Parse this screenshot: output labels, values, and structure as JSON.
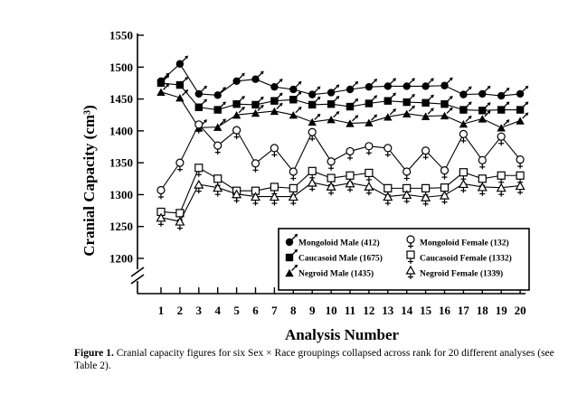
{
  "chart_data": {
    "type": "line",
    "xlabel": "Analysis Number",
    "ylabel": "Cranial Capacity (cm³)",
    "x": [
      1,
      2,
      3,
      4,
      5,
      6,
      7,
      8,
      9,
      10,
      11,
      12,
      13,
      14,
      15,
      16,
      17,
      18,
      19,
      20
    ],
    "yticks": [
      1200,
      1250,
      1300,
      1350,
      1400,
      1450,
      1500,
      1550
    ],
    "ylim": [
      1200,
      1550
    ],
    "axis_break": true,
    "series": [
      {
        "name": "Mongoloid Male (412)",
        "sex": "male",
        "values": [
          1478,
          1505,
          1458,
          1456,
          1478,
          1481,
          1469,
          1465,
          1457,
          1460,
          1465,
          1469,
          1470,
          1470,
          1470,
          1471,
          1457,
          1458,
          1455,
          1458
        ]
      },
      {
        "name": "Caucasoid Male (1675)",
        "sex": "male",
        "values": [
          1475,
          1472,
          1437,
          1433,
          1442,
          1441,
          1447,
          1449,
          1441,
          1442,
          1438,
          1443,
          1447,
          1445,
          1444,
          1442,
          1433,
          1432,
          1433,
          1433
        ]
      },
      {
        "name": "Negroid Male (1435)",
        "sex": "male",
        "values": [
          1461,
          1452,
          1405,
          1406,
          1425,
          1428,
          1431,
          1425,
          1414,
          1418,
          1412,
          1413,
          1422,
          1427,
          1423,
          1424,
          1411,
          1419,
          1405,
          1416
        ]
      },
      {
        "name": "Mongoloid Female (132)",
        "sex": "female",
        "values": [
          1307,
          1350,
          1410,
          1377,
          1401,
          1349,
          1373,
          1336,
          1398,
          1352,
          1368,
          1376,
          1373,
          1336,
          1369,
          1338,
          1395,
          1354,
          1391,
          1355
        ]
      },
      {
        "name": "Caucasoid Female (1332)",
        "sex": "female",
        "values": [
          1273,
          1271,
          1342,
          1325,
          1306,
          1306,
          1312,
          1310,
          1337,
          1326,
          1330,
          1334,
          1310,
          1310,
          1310,
          1311,
          1335,
          1325,
          1330,
          1330
        ]
      },
      {
        "name": "Negroid Female (1339)",
        "sex": "female",
        "values": [
          1264,
          1258,
          1316,
          1311,
          1301,
          1297,
          1297,
          1297,
          1319,
          1313,
          1318,
          1313,
          1297,
          1300,
          1296,
          1299,
          1317,
          1312,
          1311,
          1314
        ]
      }
    ]
  },
  "caption": {
    "label": "Figure 1.",
    "text": " Cranial capacity figures for six Sex × Race groupings collapsed across rank for 20 different analyses (see Table 2)."
  }
}
